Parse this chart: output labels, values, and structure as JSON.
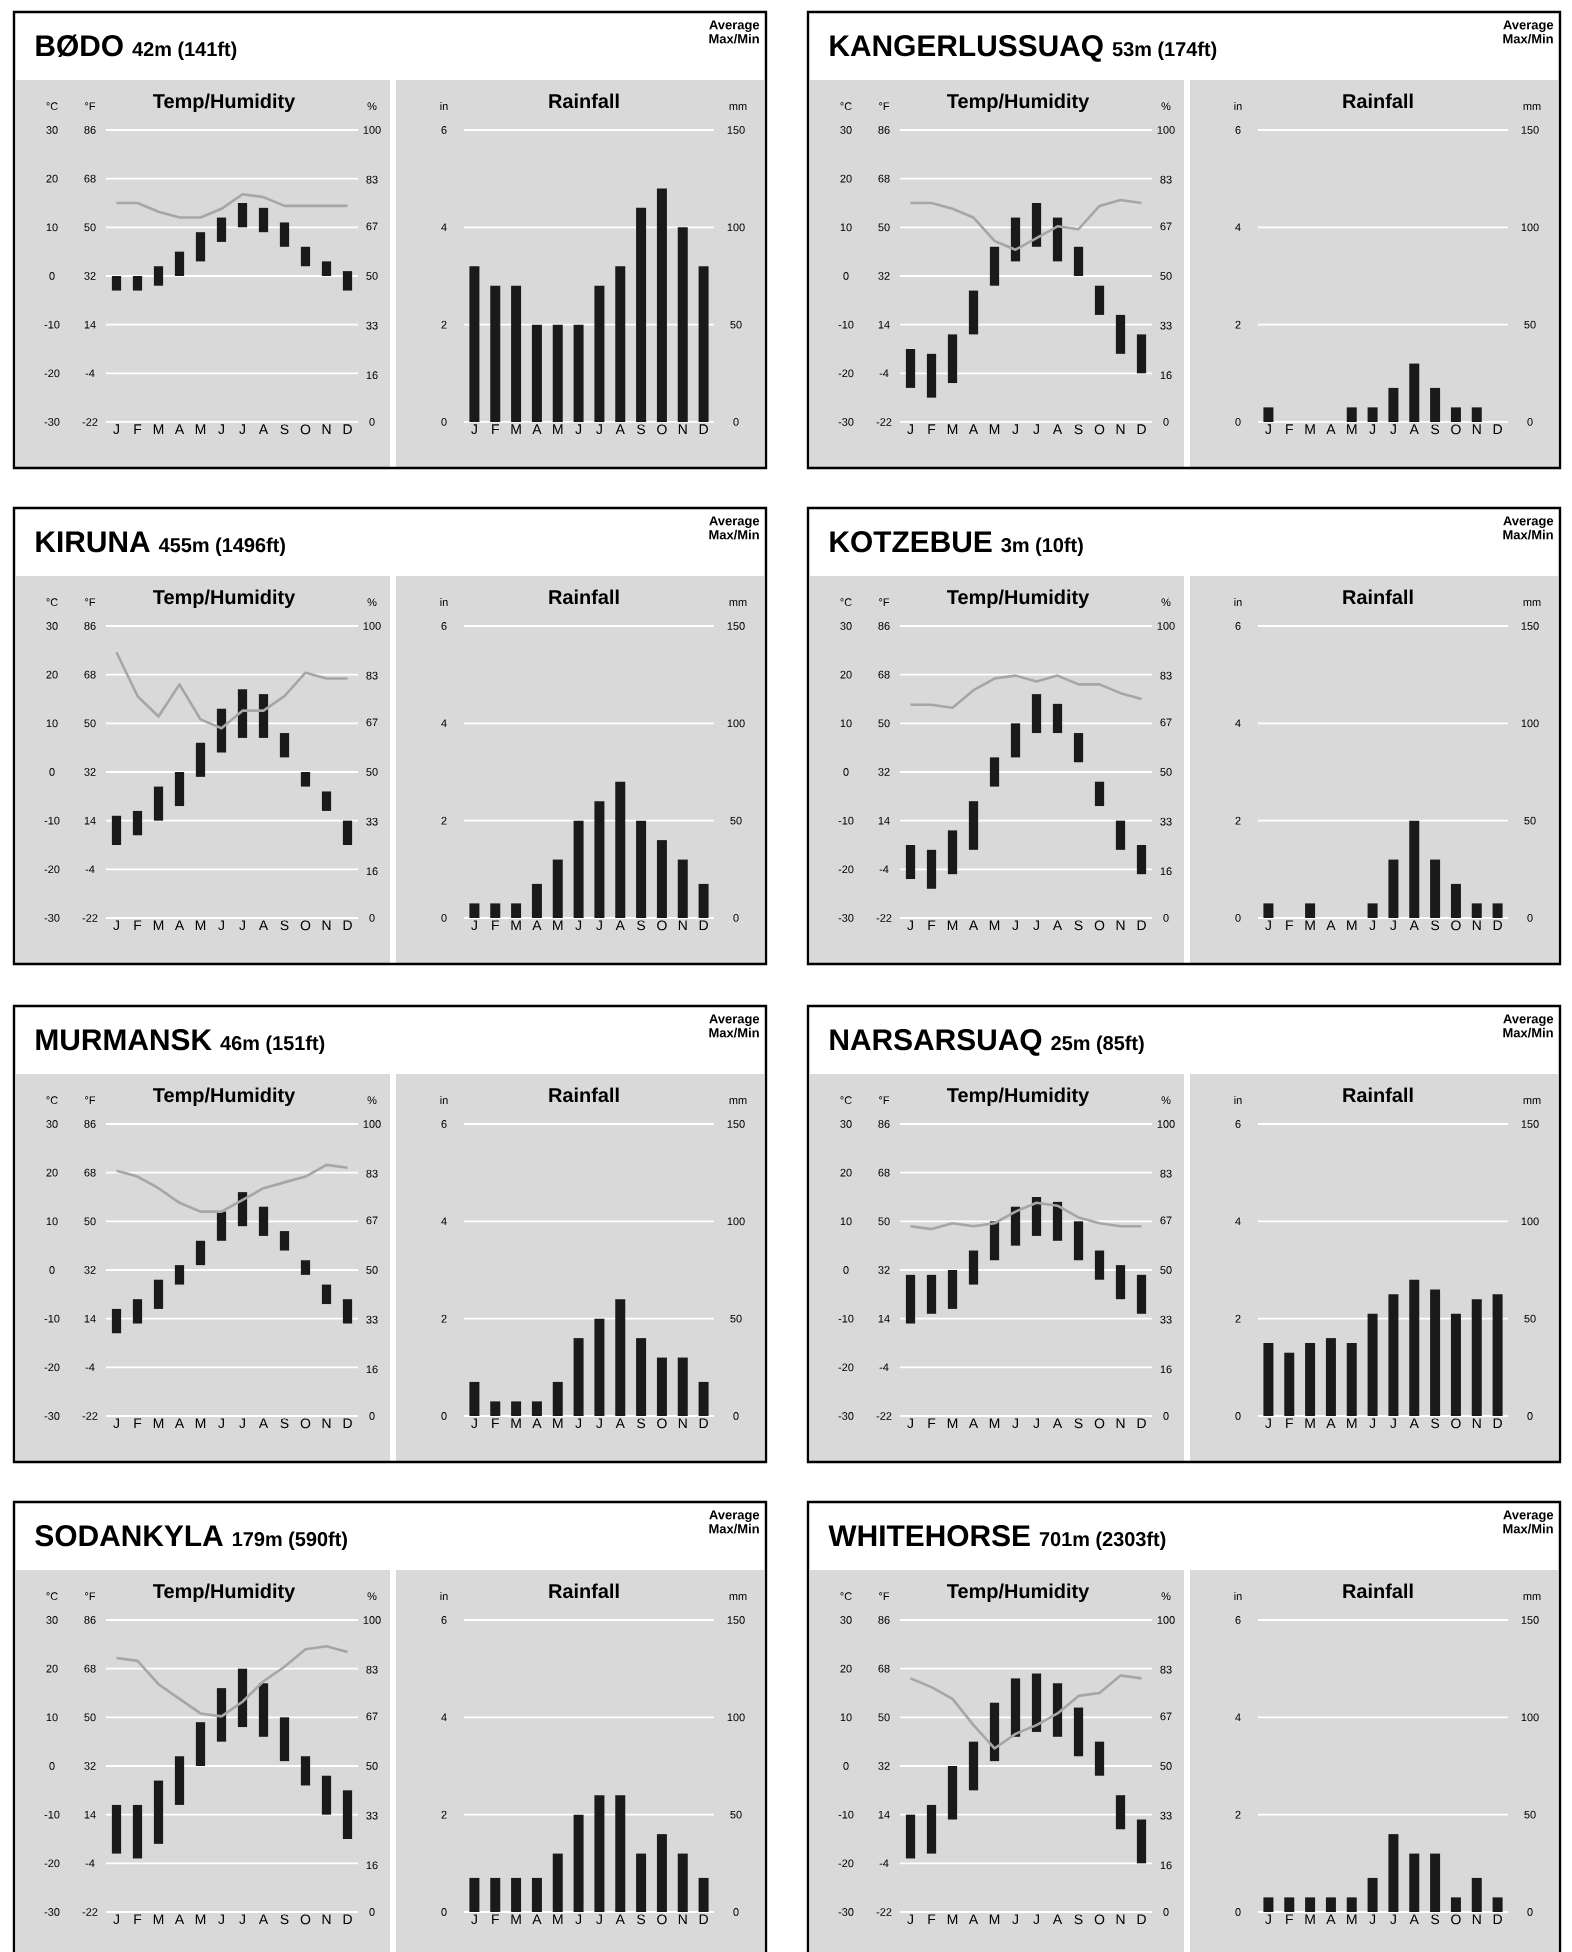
{
  "chart_data": [
    {
      "type": "bar",
      "title": "BØDO",
      "subtitle": "42m (141ft)",
      "annotations": [
        "Temp/Humidity"
      ],
      "categories": [
        "J",
        "F",
        "M",
        "A",
        "M",
        "J",
        "J",
        "A",
        "S",
        "O",
        "N",
        "D"
      ],
      "ylabel": "°C",
      "ylim": [
        -30,
        30
      ],
      "yticks": [
        -30,
        -20,
        -10,
        0,
        10,
        20,
        30
      ],
      "y3label": "°F",
      "y3lim": [
        -22,
        86
      ],
      "y3ticks": [
        -22,
        -4,
        14,
        32,
        50,
        68,
        86
      ],
      "y2label": "%",
      "y2lim": [
        0,
        100
      ],
      "y2ticks": [
        0,
        16,
        33,
        50,
        67,
        83,
        100
      ],
      "grid": "y",
      "series": [
        {
          "type": "bar",
          "color": "#1a1a1a",
          "base": [
            -3,
            -3,
            -2,
            0,
            3,
            7,
            10,
            9,
            6,
            2,
            0,
            -3
          ],
          "values": [
            3,
            3,
            4,
            5,
            6,
            5,
            5,
            5,
            5,
            4,
            3,
            4
          ]
        },
        {
          "type": "line",
          "axis": "y2",
          "color": "#a6a6a6",
          "values": [
            75,
            75,
            72,
            70,
            70,
            73,
            78,
            77,
            74,
            74,
            74,
            74
          ]
        }
      ]
    },
    {
      "type": "bar",
      "title": "Rainfall",
      "annotations": [
        "Average Max/Min"
      ],
      "categories": [
        "J",
        "F",
        "M",
        "A",
        "M",
        "J",
        "J",
        "A",
        "S",
        "O",
        "N",
        "D"
      ],
      "ylabel": "in",
      "ylim": [
        0,
        6
      ],
      "yticks": [
        0,
        2,
        4,
        6
      ],
      "y2label": "mm",
      "y2lim": [
        0,
        150
      ],
      "y2ticks": [
        0,
        50,
        100,
        150
      ],
      "grid": "y",
      "color": "#1a1a1a",
      "values": [
        3.2,
        2.8,
        2.8,
        2.0,
        2.0,
        2.0,
        2.8,
        3.2,
        4.4,
        4.8,
        4.0,
        3.2
      ]
    },
    {
      "type": "bar",
      "title": "KANGERLUSSUAQ",
      "subtitle": "53m (174ft)",
      "annotations": [
        "Temp/Humidity"
      ],
      "categories": [
        "J",
        "F",
        "M",
        "A",
        "M",
        "J",
        "J",
        "A",
        "S",
        "O",
        "N",
        "D"
      ],
      "ylabel": "°C",
      "ylim": [
        -30,
        30
      ],
      "yticks": [
        -30,
        -20,
        -10,
        0,
        10,
        20,
        30
      ],
      "y3label": "°F",
      "y3lim": [
        -22,
        86
      ],
      "y3ticks": [
        -22,
        -4,
        14,
        32,
        50,
        68,
        86
      ],
      "y2label": "%",
      "y2lim": [
        0,
        100
      ],
      "y2ticks": [
        0,
        16,
        33,
        50,
        67,
        83,
        100
      ],
      "grid": "y",
      "series": [
        {
          "type": "bar",
          "color": "#1a1a1a",
          "base": [
            -23,
            -25,
            -22,
            -12,
            -2,
            3,
            6,
            3,
            0,
            -8,
            -16,
            -20
          ],
          "values": [
            8,
            9,
            10,
            9,
            8,
            9,
            9,
            9,
            6,
            6,
            8,
            8
          ]
        },
        {
          "type": "line",
          "axis": "y2",
          "color": "#a6a6a6",
          "values": [
            75,
            75,
            73,
            70,
            62,
            59,
            63,
            67,
            66,
            74,
            76,
            75
          ]
        }
      ]
    },
    {
      "type": "bar",
      "title": "Rainfall",
      "annotations": [
        "Average Max/Min"
      ],
      "categories": [
        "J",
        "F",
        "M",
        "A",
        "M",
        "J",
        "J",
        "A",
        "S",
        "O",
        "N",
        "D"
      ],
      "ylabel": "in",
      "ylim": [
        0,
        6
      ],
      "yticks": [
        0,
        2,
        4,
        6
      ],
      "y2label": "mm",
      "y2lim": [
        0,
        150
      ],
      "y2ticks": [
        0,
        50,
        100,
        150
      ],
      "grid": "y",
      "color": "#1a1a1a",
      "values": [
        0.3,
        0,
        0,
        0,
        0.3,
        0.3,
        0.7,
        1.2,
        0.7,
        0.3,
        0.3,
        0
      ]
    },
    {
      "type": "bar",
      "title": "KIRUNA",
      "subtitle": "455m (1496ft)",
      "annotations": [
        "Temp/Humidity"
      ],
      "categories": [
        "J",
        "F",
        "M",
        "A",
        "M",
        "J",
        "J",
        "A",
        "S",
        "O",
        "N",
        "D"
      ],
      "ylabel": "°C",
      "ylim": [
        -30,
        30
      ],
      "yticks": [
        -30,
        -20,
        -10,
        0,
        10,
        20,
        30
      ],
      "y3label": "°F",
      "y3lim": [
        -22,
        86
      ],
      "y3ticks": [
        -22,
        -4,
        14,
        32,
        50,
        68,
        86
      ],
      "y2label": "%",
      "y2lim": [
        0,
        100
      ],
      "y2ticks": [
        0,
        16,
        33,
        50,
        67,
        83,
        100
      ],
      "grid": "y",
      "series": [
        {
          "type": "bar",
          "color": "#1a1a1a",
          "base": [
            -15,
            -13,
            -10,
            -7,
            -1,
            4,
            7,
            7,
            3,
            -3,
            -8,
            -15
          ],
          "values": [
            6,
            5,
            7,
            7,
            7,
            9,
            10,
            9,
            5,
            3,
            4,
            5
          ]
        },
        {
          "type": "line",
          "axis": "y2",
          "color": "#a6a6a6",
          "values": [
            91,
            76,
            69,
            80,
            68,
            65,
            71,
            71,
            76,
            84,
            82,
            82
          ]
        }
      ]
    },
    {
      "type": "bar",
      "title": "Rainfall",
      "annotations": [
        "Average Max/Min"
      ],
      "categories": [
        "J",
        "F",
        "M",
        "A",
        "M",
        "J",
        "J",
        "A",
        "S",
        "O",
        "N",
        "D"
      ],
      "ylabel": "in",
      "ylim": [
        0,
        6
      ],
      "yticks": [
        0,
        2,
        4,
        6
      ],
      "y2label": "mm",
      "y2lim": [
        0,
        150
      ],
      "y2ticks": [
        0,
        50,
        100,
        150
      ],
      "grid": "y",
      "color": "#1a1a1a",
      "values": [
        0.3,
        0.3,
        0.3,
        0.7,
        1.2,
        2.0,
        2.4,
        2.8,
        2.0,
        1.6,
        1.2,
        0.7
      ]
    },
    {
      "type": "bar",
      "title": "KOTZEBUE",
      "subtitle": "3m (10ft)",
      "annotations": [
        "Temp/Humidity"
      ],
      "categories": [
        "J",
        "F",
        "M",
        "A",
        "M",
        "J",
        "J",
        "A",
        "S",
        "O",
        "N",
        "D"
      ],
      "ylabel": "°C",
      "ylim": [
        -30,
        30
      ],
      "yticks": [
        -30,
        -20,
        -10,
        0,
        10,
        20,
        30
      ],
      "y3label": "°F",
      "y3lim": [
        -22,
        86
      ],
      "y3ticks": [
        -22,
        -4,
        14,
        32,
        50,
        68,
        86
      ],
      "y2label": "%",
      "y2lim": [
        0,
        100
      ],
      "y2ticks": [
        0,
        16,
        33,
        50,
        67,
        83,
        100
      ],
      "grid": "y",
      "series": [
        {
          "type": "bar",
          "color": "#1a1a1a",
          "base": [
            -22,
            -24,
            -21,
            -16,
            -3,
            3,
            8,
            8,
            2,
            -7,
            -16,
            -21
          ],
          "values": [
            7,
            8,
            9,
            10,
            6,
            7,
            8,
            6,
            6,
            5,
            6,
            6
          ]
        },
        {
          "type": "line",
          "axis": "y2",
          "color": "#a6a6a6",
          "values": [
            73,
            73,
            72,
            78,
            82,
            83,
            81,
            83,
            80,
            80,
            77,
            75
          ]
        }
      ]
    },
    {
      "type": "bar",
      "title": "Rainfall",
      "annotations": [
        "Average Max/Min"
      ],
      "categories": [
        "J",
        "F",
        "M",
        "A",
        "M",
        "J",
        "J",
        "A",
        "S",
        "O",
        "N",
        "D"
      ],
      "ylabel": "in",
      "ylim": [
        0,
        6
      ],
      "yticks": [
        0,
        2,
        4,
        6
      ],
      "y2label": "mm",
      "y2lim": [
        0,
        150
      ],
      "y2ticks": [
        0,
        50,
        100,
        150
      ],
      "grid": "y",
      "color": "#1a1a1a",
      "values": [
        0.3,
        0,
        0.3,
        0,
        0,
        0.3,
        1.2,
        2.0,
        1.2,
        0.7,
        0.3,
        0.3
      ]
    },
    {
      "type": "bar",
      "title": "MURMANSK",
      "subtitle": "46m (151ft)",
      "annotations": [
        "Temp/Humidity"
      ],
      "categories": [
        "J",
        "F",
        "M",
        "A",
        "M",
        "J",
        "J",
        "A",
        "S",
        "O",
        "N",
        "D"
      ],
      "ylabel": "°C",
      "ylim": [
        -30,
        30
      ],
      "yticks": [
        -30,
        -20,
        -10,
        0,
        10,
        20,
        30
      ],
      "y3label": "°F",
      "y3lim": [
        -22,
        86
      ],
      "y3ticks": [
        -22,
        -4,
        14,
        32,
        50,
        68,
        86
      ],
      "y2label": "%",
      "y2lim": [
        0,
        100
      ],
      "y2ticks": [
        0,
        16,
        33,
        50,
        67,
        83,
        100
      ],
      "grid": "y",
      "series": [
        {
          "type": "bar",
          "color": "#1a1a1a",
          "base": [
            -13,
            -11,
            -8,
            -3,
            1,
            6,
            9,
            7,
            4,
            -1,
            -7,
            -11
          ],
          "values": [
            5,
            5,
            6,
            4,
            5,
            6,
            7,
            6,
            4,
            3,
            4,
            5
          ]
        },
        {
          "type": "line",
          "axis": "y2",
          "color": "#a6a6a6",
          "values": [
            84,
            82,
            78,
            73,
            70,
            70,
            74,
            78,
            80,
            82,
            86,
            85
          ]
        }
      ]
    },
    {
      "type": "bar",
      "title": "Rainfall",
      "annotations": [
        "Average Max/Min"
      ],
      "categories": [
        "J",
        "F",
        "M",
        "A",
        "M",
        "J",
        "J",
        "A",
        "S",
        "O",
        "N",
        "D"
      ],
      "ylabel": "in",
      "ylim": [
        0,
        6
      ],
      "yticks": [
        0,
        2,
        4,
        6
      ],
      "y2label": "mm",
      "y2lim": [
        0,
        150
      ],
      "y2ticks": [
        0,
        50,
        100,
        150
      ],
      "grid": "y",
      "color": "#1a1a1a",
      "values": [
        0.7,
        0.3,
        0.3,
        0.3,
        0.7,
        1.6,
        2.0,
        2.4,
        1.6,
        1.2,
        1.2,
        0.7
      ]
    },
    {
      "type": "bar",
      "title": "NARSARSUAQ",
      "subtitle": "25m (85ft)",
      "annotations": [
        "Temp/Humidity"
      ],
      "categories": [
        "J",
        "F",
        "M",
        "A",
        "M",
        "J",
        "J",
        "A",
        "S",
        "O",
        "N",
        "D"
      ],
      "ylabel": "°C",
      "ylim": [
        -30,
        30
      ],
      "yticks": [
        -30,
        -20,
        -10,
        0,
        10,
        20,
        30
      ],
      "y3label": "°F",
      "y3lim": [
        -22,
        86
      ],
      "y3ticks": [
        -22,
        -4,
        14,
        32,
        50,
        68,
        86
      ],
      "y2label": "%",
      "y2lim": [
        0,
        100
      ],
      "y2ticks": [
        0,
        16,
        33,
        50,
        67,
        83,
        100
      ],
      "grid": "y",
      "series": [
        {
          "type": "bar",
          "color": "#1a1a1a",
          "base": [
            -11,
            -9,
            -8,
            -3,
            2,
            5,
            7,
            6,
            2,
            -2,
            -6,
            -9
          ],
          "values": [
            10,
            8,
            8,
            7,
            8,
            8,
            8,
            8,
            8,
            6,
            7,
            8
          ]
        },
        {
          "type": "line",
          "axis": "y2",
          "color": "#a6a6a6",
          "values": [
            65,
            64,
            66,
            65,
            66,
            70,
            73,
            72,
            68,
            66,
            65,
            65
          ]
        }
      ]
    },
    {
      "type": "bar",
      "title": "Rainfall",
      "annotations": [
        "Average Max/Min"
      ],
      "categories": [
        "J",
        "F",
        "M",
        "A",
        "M",
        "J",
        "J",
        "A",
        "S",
        "O",
        "N",
        "D"
      ],
      "ylabel": "in",
      "ylim": [
        0,
        6
      ],
      "yticks": [
        0,
        2,
        4,
        6
      ],
      "y2label": "mm",
      "y2lim": [
        0,
        150
      ],
      "y2ticks": [
        0,
        50,
        100,
        150
      ],
      "grid": "y",
      "color": "#1a1a1a",
      "values": [
        1.5,
        1.3,
        1.5,
        1.6,
        1.5,
        2.1,
        2.5,
        2.8,
        2.6,
        2.1,
        2.4,
        2.5
      ]
    },
    {
      "type": "bar",
      "title": "SODANKYLA",
      "subtitle": "179m (590ft)",
      "annotations": [
        "Temp/Humidity"
      ],
      "categories": [
        "J",
        "F",
        "M",
        "A",
        "M",
        "J",
        "J",
        "A",
        "S",
        "O",
        "N",
        "D"
      ],
      "ylabel": "°C",
      "ylim": [
        -30,
        30
      ],
      "yticks": [
        -30,
        -20,
        -10,
        0,
        10,
        20,
        30
      ],
      "y3label": "°F",
      "y3lim": [
        -22,
        86
      ],
      "y3ticks": [
        -22,
        -4,
        14,
        32,
        50,
        68,
        86
      ],
      "y2label": "%",
      "y2lim": [
        0,
        100
      ],
      "y2ticks": [
        0,
        16,
        33,
        50,
        67,
        83,
        100
      ],
      "grid": "y",
      "series": [
        {
          "type": "bar",
          "color": "#1a1a1a",
          "base": [
            -18,
            -19,
            -16,
            -8,
            0,
            5,
            8,
            6,
            1,
            -4,
            -10,
            -15
          ],
          "values": [
            10,
            11,
            13,
            10,
            9,
            11,
            12,
            11,
            9,
            6,
            8,
            10
          ]
        },
        {
          "type": "line",
          "axis": "y2",
          "color": "#a6a6a6",
          "values": [
            87,
            86,
            78,
            73,
            68,
            67,
            72,
            79,
            84,
            90,
            91,
            89
          ]
        }
      ]
    },
    {
      "type": "bar",
      "title": "Rainfall",
      "annotations": [
        "Average Max/Min"
      ],
      "categories": [
        "J",
        "F",
        "M",
        "A",
        "M",
        "J",
        "J",
        "A",
        "S",
        "O",
        "N",
        "D"
      ],
      "ylabel": "in",
      "ylim": [
        0,
        6
      ],
      "yticks": [
        0,
        2,
        4,
        6
      ],
      "y2label": "mm",
      "y2lim": [
        0,
        150
      ],
      "y2ticks": [
        0,
        50,
        100,
        150
      ],
      "grid": "y",
      "color": "#1a1a1a",
      "values": [
        0.7,
        0.7,
        0.7,
        0.7,
        1.2,
        2.0,
        2.4,
        2.4,
        1.2,
        1.6,
        1.2,
        0.7
      ]
    },
    {
      "type": "bar",
      "title": "WHITEHORSE",
      "subtitle": "701m (2303ft)",
      "annotations": [
        "Temp/Humidity"
      ],
      "categories": [
        "J",
        "F",
        "M",
        "A",
        "M",
        "J",
        "J",
        "A",
        "S",
        "O",
        "N",
        "D"
      ],
      "ylabel": "°C",
      "ylim": [
        -30,
        30
      ],
      "yticks": [
        -30,
        -20,
        -10,
        0,
        10,
        20,
        30
      ],
      "y3label": "°F",
      "y3lim": [
        -22,
        86
      ],
      "y3ticks": [
        -22,
        -4,
        14,
        32,
        50,
        68,
        86
      ],
      "y2label": "%",
      "y2lim": [
        0,
        100
      ],
      "y2ticks": [
        0,
        16,
        33,
        50,
        67,
        83,
        100
      ],
      "grid": "y",
      "series": [
        {
          "type": "bar",
          "color": "#1a1a1a",
          "base": [
            -19,
            -18,
            -11,
            -5,
            1,
            6,
            7,
            6,
            2,
            -2,
            -13,
            -20
          ],
          "values": [
            9,
            10,
            11,
            10,
            12,
            12,
            12,
            11,
            10,
            7,
            7,
            9
          ]
        },
        {
          "type": "line",
          "axis": "y2",
          "color": "#a6a6a6",
          "values": [
            80,
            77,
            73,
            64,
            56,
            61,
            64,
            68,
            74,
            75,
            81,
            80
          ]
        }
      ]
    },
    {
      "type": "bar",
      "title": "Rainfall",
      "annotations": [
        "Average Max/Min"
      ],
      "categories": [
        "J",
        "F",
        "M",
        "A",
        "M",
        "J",
        "J",
        "A",
        "S",
        "O",
        "N",
        "D"
      ],
      "ylabel": "in",
      "ylim": [
        0,
        6
      ],
      "yticks": [
        0,
        2,
        4,
        6
      ],
      "y2label": "mm",
      "y2lim": [
        0,
        150
      ],
      "y2ticks": [
        0,
        50,
        100,
        150
      ],
      "grid": "y",
      "color": "#1a1a1a",
      "values": [
        0.3,
        0.3,
        0.3,
        0.3,
        0.3,
        0.7,
        1.6,
        1.2,
        1.2,
        0.3,
        0.7,
        0.3
      ]
    }
  ]
}
